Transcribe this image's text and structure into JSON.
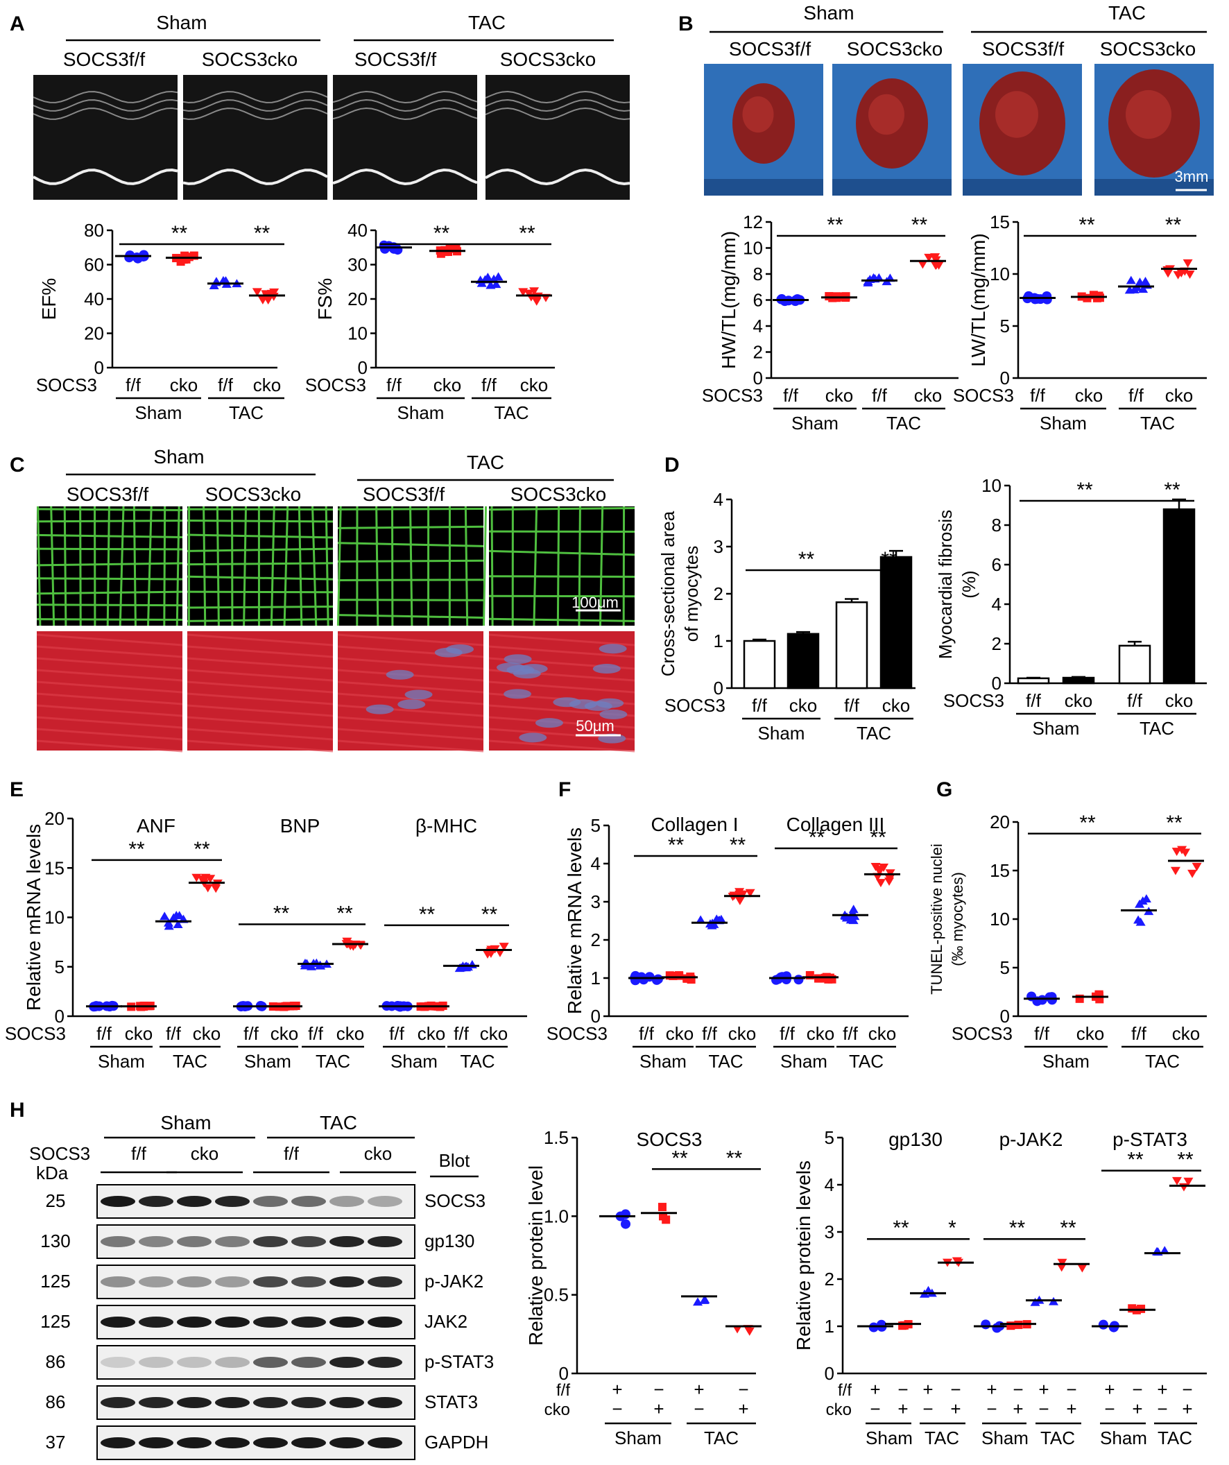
{
  "panels": {
    "A": {
      "letter": "A",
      "groups": [
        "Sham",
        "TAC"
      ],
      "genotypes": [
        "SOCS3f/f",
        "SOCS3cko",
        "SOCS3f/f",
        "SOCS3cko"
      ],
      "sig": "**"
    },
    "B": {
      "letter": "B",
      "groups": [
        "Sham",
        "TAC"
      ],
      "genotypes": [
        "SOCS3f/f",
        "SOCS3cko",
        "SOCS3f/f",
        "SOCS3cko"
      ],
      "scale_bar": "3mm",
      "sig": "**"
    },
    "C": {
      "letter": "C",
      "groups": [
        "Sham",
        "TAC"
      ],
      "genotypes": [
        "SOCS3f/f",
        "SOCS3cko",
        "SOCS3f/f",
        "SOCS3cko"
      ],
      "scale_bar_top": "100μm",
      "scale_bar_bottom": "50μm"
    },
    "D": {
      "letter": "D"
    },
    "E": {
      "letter": "E"
    },
    "F": {
      "letter": "F"
    },
    "G": {
      "letter": "G"
    },
    "H": {
      "letter": "H",
      "groups": [
        "Sham",
        "TAC"
      ],
      "row_label": "SOCS3",
      "kda_label": "kDa",
      "lanes": [
        "f/f",
        "cko",
        "f/f",
        "cko"
      ],
      "blot_header": "Blot",
      "blots": [
        {
          "kda": "25",
          "name": "SOCS3"
        },
        {
          "kda": "130",
          "name": "gp130"
        },
        {
          "kda": "125",
          "name": "p-JAK2"
        },
        {
          "kda": "125",
          "name": "JAK2"
        },
        {
          "kda": "86",
          "name": "p-STAT3"
        },
        {
          "kda": "86",
          "name": "STAT3"
        },
        {
          "kda": "37",
          "name": "GAPDH"
        }
      ]
    }
  },
  "common": {
    "socs3": "SOCS3",
    "ff": "f/f",
    "cko": "cko",
    "sham": "Sham",
    "tac": "TAC",
    "plus": "+",
    "minus": "−"
  },
  "chart_data": [
    {
      "id": "A-EF",
      "type": "scatter",
      "title": "",
      "ylabel": "EF%",
      "ylim": [
        0,
        80
      ],
      "yticks": [
        0,
        20,
        40,
        60,
        80
      ],
      "categories": [
        "Sham f/f",
        "Sham cko",
        "TAC f/f",
        "TAC cko"
      ],
      "values": [
        65,
        64,
        49,
        42
      ],
      "significance": [
        {
          "between": [
            "Sham f/f",
            "TAC f/f"
          ],
          "label": "**"
        },
        {
          "between": [
            "TAC f/f",
            "TAC cko"
          ],
          "label": "**"
        }
      ]
    },
    {
      "id": "A-FS",
      "type": "scatter",
      "title": "",
      "ylabel": "FS%",
      "ylim": [
        0,
        40
      ],
      "yticks": [
        0,
        10,
        20,
        30,
        40
      ],
      "categories": [
        "Sham f/f",
        "Sham cko",
        "TAC f/f",
        "TAC cko"
      ],
      "values": [
        35,
        34,
        25,
        21
      ],
      "significance": [
        {
          "between": [
            "Sham f/f",
            "TAC f/f"
          ],
          "label": "**"
        },
        {
          "between": [
            "TAC f/f",
            "TAC cko"
          ],
          "label": "**"
        }
      ]
    },
    {
      "id": "B-HW",
      "type": "scatter",
      "title": "",
      "ylabel": "HW/TL(mg/mm)",
      "ylim": [
        0,
        12
      ],
      "yticks": [
        0,
        2,
        4,
        6,
        8,
        10,
        12
      ],
      "categories": [
        "Sham f/f",
        "Sham cko",
        "TAC f/f",
        "TAC cko"
      ],
      "values": [
        6.0,
        6.2,
        7.5,
        9.0
      ],
      "significance": [
        {
          "between": [
            "Sham f/f",
            "TAC f/f"
          ],
          "label": "**"
        },
        {
          "between": [
            "TAC f/f",
            "TAC cko"
          ],
          "label": "**"
        }
      ]
    },
    {
      "id": "B-LW",
      "type": "scatter",
      "title": "",
      "ylabel": "LW/TL(mg/mm)",
      "ylim": [
        0,
        15
      ],
      "yticks": [
        0,
        5,
        10,
        15
      ],
      "categories": [
        "Sham f/f",
        "Sham cko",
        "TAC f/f",
        "TAC cko"
      ],
      "values": [
        7.7,
        7.8,
        8.8,
        10.5
      ],
      "significance": [
        {
          "between": [
            "Sham f/f",
            "TAC f/f"
          ],
          "label": "**"
        },
        {
          "between": [
            "TAC f/f",
            "TAC cko"
          ],
          "label": "**"
        }
      ]
    },
    {
      "id": "D-CSA",
      "type": "bar",
      "title": "",
      "ylabel": "Cross-sectional area of myocytes",
      "ylim": [
        0,
        4
      ],
      "yticks": [
        0,
        1,
        2,
        3,
        4
      ],
      "categories": [
        "Sham f/f",
        "Sham cko",
        "TAC f/f",
        "TAC cko"
      ],
      "values": [
        1.0,
        1.15,
        1.82,
        2.78
      ],
      "errors": [
        0.03,
        0.04,
        0.07,
        0.13
      ],
      "significance": [
        {
          "between": [
            "Sham f/f",
            "TAC f/f"
          ],
          "label": "**"
        },
        {
          "between": [
            "TAC f/f",
            "TAC cko"
          ],
          "label": "**"
        }
      ]
    },
    {
      "id": "D-Fib",
      "type": "bar",
      "title": "",
      "ylabel": "Myocardial fibrosis (%)",
      "ylim": [
        0,
        10
      ],
      "yticks": [
        0,
        2,
        4,
        6,
        8,
        10
      ],
      "categories": [
        "Sham f/f",
        "Sham cko",
        "TAC f/f",
        "TAC cko"
      ],
      "values": [
        0.25,
        0.28,
        1.9,
        8.8
      ],
      "errors": [
        0.03,
        0.04,
        0.2,
        0.5
      ],
      "significance": [
        {
          "between": [
            "Sham f/f",
            "TAC f/f"
          ],
          "label": "**"
        },
        {
          "between": [
            "TAC f/f",
            "TAC cko"
          ],
          "label": "**"
        }
      ]
    },
    {
      "id": "E",
      "type": "scatter",
      "title": "",
      "ylabel": "Relative mRNA levels",
      "ylim": [
        0,
        20
      ],
      "yticks": [
        0,
        5,
        10,
        15,
        20
      ],
      "series": [
        {
          "name": "ANF",
          "categories": [
            "Sham f/f",
            "Sham cko",
            "TAC f/f",
            "TAC cko"
          ],
          "values": [
            1.0,
            1.0,
            9.6,
            13.5
          ]
        },
        {
          "name": "BNP",
          "categories": [
            "Sham f/f",
            "Sham cko",
            "TAC f/f",
            "TAC cko"
          ],
          "values": [
            1.0,
            1.0,
            5.3,
            7.3
          ]
        },
        {
          "name": "β-MHC",
          "categories": [
            "Sham f/f",
            "Sham cko",
            "TAC f/f",
            "TAC cko"
          ],
          "values": [
            1.0,
            1.0,
            5.1,
            6.7
          ]
        }
      ]
    },
    {
      "id": "F",
      "type": "scatter",
      "title": "",
      "ylabel": "Relative mRNA levels",
      "ylim": [
        0,
        5
      ],
      "yticks": [
        0,
        1,
        2,
        3,
        4,
        5
      ],
      "series": [
        {
          "name": "Collagen I",
          "categories": [
            "Sham f/f",
            "Sham cko",
            "TAC f/f",
            "TAC cko"
          ],
          "values": [
            1.0,
            1.02,
            2.45,
            3.15
          ]
        },
        {
          "name": "Collagen III",
          "categories": [
            "Sham f/f",
            "Sham cko",
            "TAC f/f",
            "TAC cko"
          ],
          "values": [
            1.0,
            1.02,
            2.65,
            3.72
          ]
        }
      ]
    },
    {
      "id": "G",
      "type": "scatter",
      "title": "",
      "ylabel": "TUNEL-positive nuclei (‰ myocytes)",
      "ylim": [
        0,
        20
      ],
      "yticks": [
        0,
        5,
        10,
        15,
        20
      ],
      "categories": [
        "Sham f/f",
        "Sham cko",
        "TAC f/f",
        "TAC cko"
      ],
      "values": [
        1.8,
        2.0,
        10.9,
        16.0
      ],
      "significance": [
        {
          "between": [
            "Sham f/f",
            "TAC f/f"
          ],
          "label": "**"
        },
        {
          "between": [
            "TAC f/f",
            "TAC cko"
          ],
          "label": "**"
        }
      ]
    },
    {
      "id": "H-SOCS3",
      "type": "scatter",
      "title": "SOCS3",
      "ylabel": "Relative protein level",
      "ylim": [
        0,
        1.5
      ],
      "yticks": [
        0,
        0.5,
        1.0,
        1.5
      ],
      "ytick_labels": [
        "0",
        "0.5",
        "1.0",
        "1.5"
      ],
      "categories": [
        "Sham f/f",
        "Sham cko",
        "TAC f/f",
        "TAC cko"
      ],
      "values": [
        1.0,
        1.02,
        0.49,
        0.3
      ],
      "significance": [
        {
          "between": [
            "Sham cko",
            "TAC f/f"
          ],
          "label": "**"
        },
        {
          "between": [
            "TAC f/f",
            "TAC cko"
          ],
          "label": "**"
        }
      ]
    },
    {
      "id": "H-proteins",
      "type": "scatter",
      "title": "",
      "ylabel": "Relative protein levels",
      "ylim": [
        0,
        5
      ],
      "yticks": [
        0,
        1,
        2,
        3,
        4,
        5
      ],
      "series": [
        {
          "name": "gp130",
          "categories": [
            "Sham f/f",
            "Sham cko",
            "TAC f/f",
            "TAC cko"
          ],
          "values": [
            1.0,
            1.05,
            1.7,
            2.35
          ],
          "significance": [
            "**",
            "*"
          ]
        },
        {
          "name": "p-JAK2",
          "categories": [
            "Sham f/f",
            "Sham cko",
            "TAC f/f",
            "TAC cko"
          ],
          "values": [
            1.0,
            1.05,
            1.55,
            2.32
          ],
          "significance": [
            "**",
            "**"
          ]
        },
        {
          "name": "p-STAT3",
          "categories": [
            "Sham f/f",
            "Sham cko",
            "TAC f/f",
            "TAC cko"
          ],
          "values": [
            1.0,
            1.35,
            2.55,
            3.98
          ],
          "significance": [
            "**",
            "**"
          ]
        }
      ]
    }
  ],
  "colors": {
    "ff": "#1a1aff",
    "cko": "#ff1a1a",
    "bar_ff": "#ffffff",
    "bar_cko": "#000000"
  }
}
